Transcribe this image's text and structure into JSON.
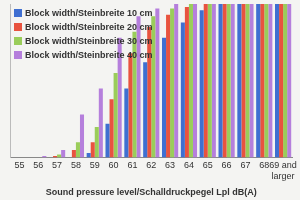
{
  "chart_data": {
    "type": "bar",
    "x_label": "Sound pressure level/Schalldruckpegel Lpl dB(A)",
    "categories": [
      "55",
      "56",
      "57",
      "58",
      "59",
      "60",
      "61",
      "62",
      "63",
      "64",
      "65",
      "66",
      "67",
      "68",
      "69 and larger"
    ],
    "series": [
      {
        "name": "Block width/Steinbreite 10 cm",
        "color": "#3f6fd1",
        "values": [
          0,
          0,
          0,
          0,
          3,
          22,
          45,
          62,
          78,
          88,
          96,
          100,
          100,
          100,
          100
        ]
      },
      {
        "name": "Block width/Steinbreite 20 cm",
        "color": "#e8533f",
        "values": [
          0,
          0,
          1,
          5,
          10,
          38,
          68,
          85,
          93,
          98,
          100,
          100,
          100,
          100,
          100
        ]
      },
      {
        "name": "Block width/Steinbreite 30 cm",
        "color": "#9acd5a",
        "values": [
          0,
          0,
          2,
          10,
          20,
          55,
          82,
          92,
          97,
          100,
          100,
          100,
          100,
          100,
          100
        ]
      },
      {
        "name": "Block width/Steinbreite 40 cm",
        "color": "#b57fdc",
        "values": [
          0,
          1,
          5,
          28,
          45,
          78,
          92,
          97,
          100,
          100,
          100,
          100,
          100,
          100,
          100
        ]
      }
    ],
    "ylim": [
      0,
      100
    ],
    "grid": false,
    "legend": "upper left",
    "tick_labels": "x"
  }
}
